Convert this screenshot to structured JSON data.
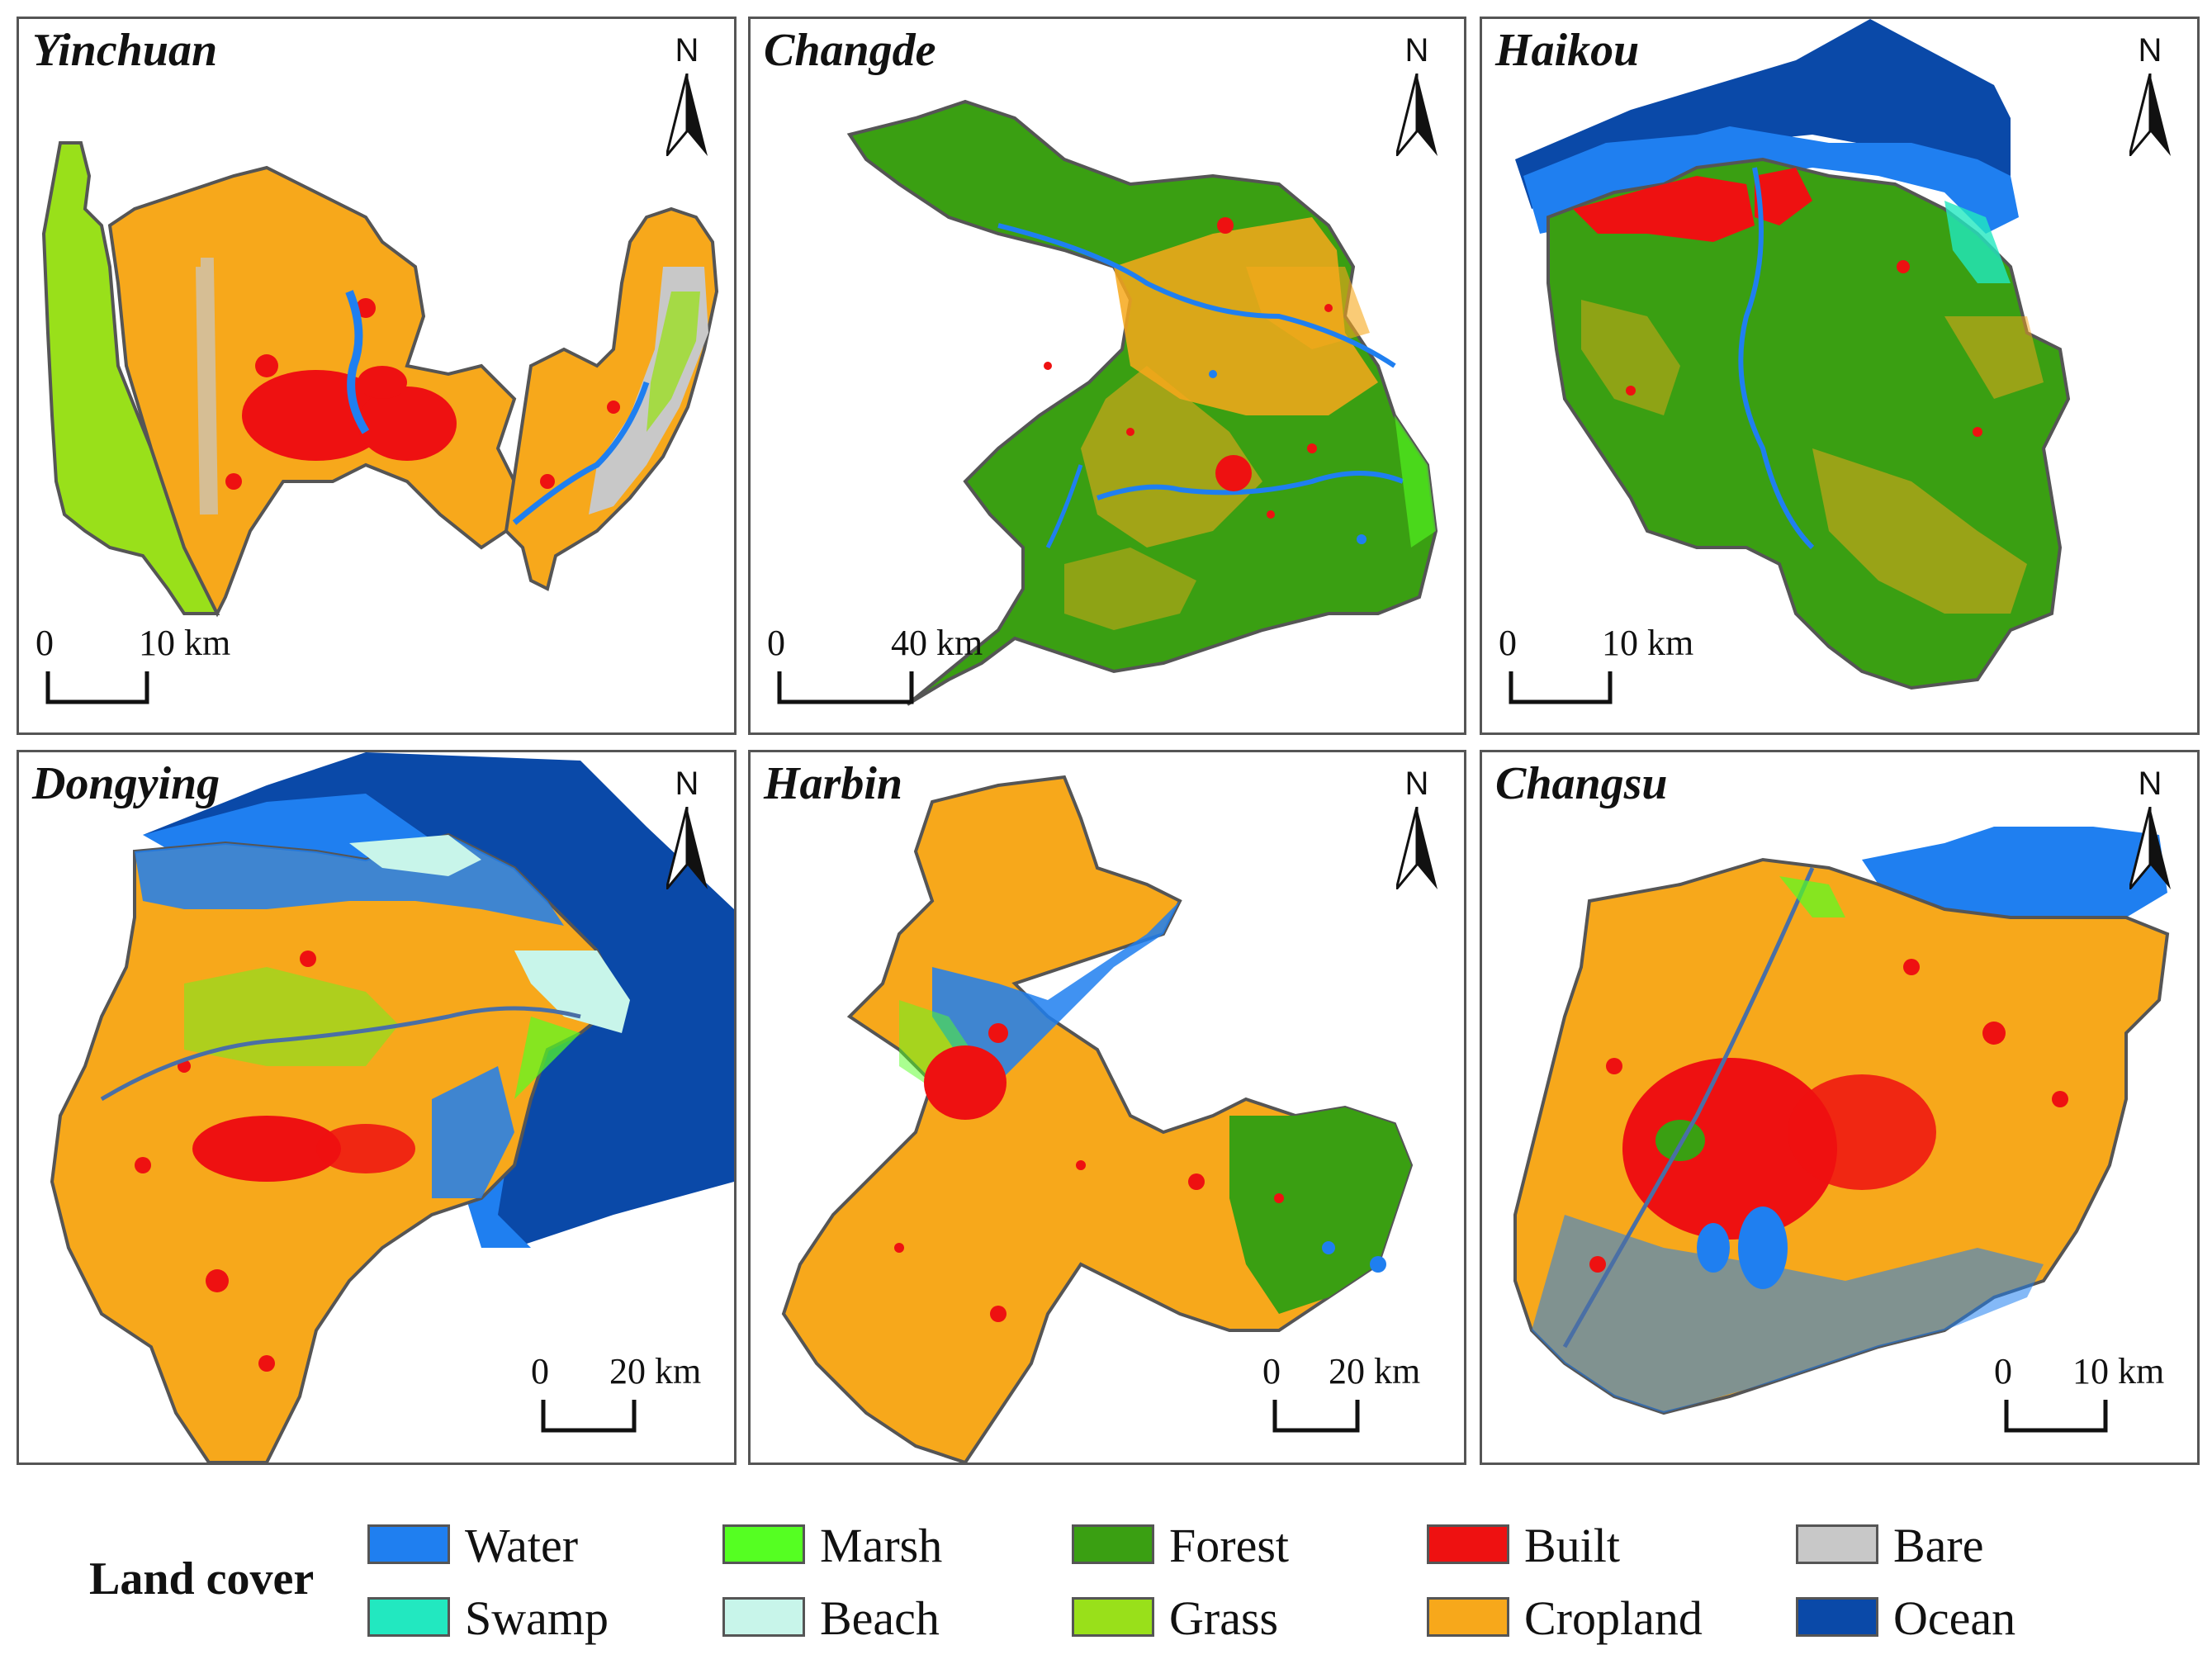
{
  "panels": [
    {
      "city": "Yinchuan",
      "scale_start": "0",
      "scale_end": "10 km",
      "north": "N"
    },
    {
      "city": "Changde",
      "scale_start": "0",
      "scale_end": "40 km",
      "north": "N"
    },
    {
      "city": "Haikou",
      "scale_start": "0",
      "scale_end": "10 km",
      "north": "N"
    },
    {
      "city": "Dongying",
      "scale_start": "0",
      "scale_end": "20 km",
      "north": "N"
    },
    {
      "city": "Harbin",
      "scale_start": "0",
      "scale_end": "20 km",
      "north": "N"
    },
    {
      "city": "Changsu",
      "scale_start": "0",
      "scale_end": "10 km",
      "north": "N"
    }
  ],
  "legend": {
    "title": "Land cover",
    "items": [
      {
        "label": "Water",
        "color": "#1f7ff0"
      },
      {
        "label": "Marsh",
        "color": "#55ff22"
      },
      {
        "label": "Forest",
        "color": "#3a9f12"
      },
      {
        "label": "Built",
        "color": "#ee1111"
      },
      {
        "label": "Bare",
        "color": "#c8c8c8"
      },
      {
        "label": "Swamp",
        "color": "#22e8c0"
      },
      {
        "label": "Beach",
        "color": "#c8f5ea"
      },
      {
        "label": "Grass",
        "color": "#99e01a"
      },
      {
        "label": "Cropland",
        "color": "#f7a81b"
      },
      {
        "label": "Ocean",
        "color": "#0a49a8"
      }
    ]
  }
}
